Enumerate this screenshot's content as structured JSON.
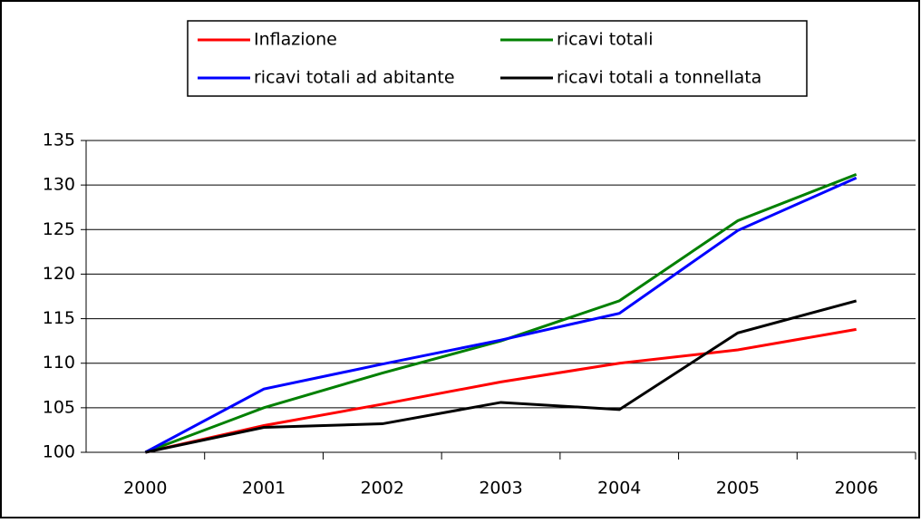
{
  "chart_data": {
    "type": "line",
    "categories": [
      "2000",
      "2001",
      "2002",
      "2003",
      "2004",
      "2005",
      "2006"
    ],
    "series": [
      {
        "name": "Inflazione",
        "color": "#ff0000",
        "values": [
          100,
          103.0,
          105.4,
          107.9,
          110.0,
          111.5,
          113.8
        ]
      },
      {
        "name": "ricavi totali",
        "color": "#008000",
        "values": [
          100,
          105.0,
          108.9,
          112.5,
          117.0,
          126.0,
          131.2
        ]
      },
      {
        "name": "ricavi totali ad abitante",
        "color": "#0000ff",
        "values": [
          100,
          107.1,
          109.9,
          112.6,
          115.6,
          124.9,
          130.8
        ]
      },
      {
        "name": "ricavi totali a tonnellata",
        "color": "#000000",
        "values": [
          100,
          102.8,
          103.2,
          105.6,
          104.8,
          113.4,
          117.0
        ]
      }
    ],
    "ylim": [
      100,
      135
    ],
    "yticks": [
      100,
      105,
      110,
      115,
      120,
      125,
      130,
      135
    ],
    "grid": true,
    "legend": "top"
  }
}
